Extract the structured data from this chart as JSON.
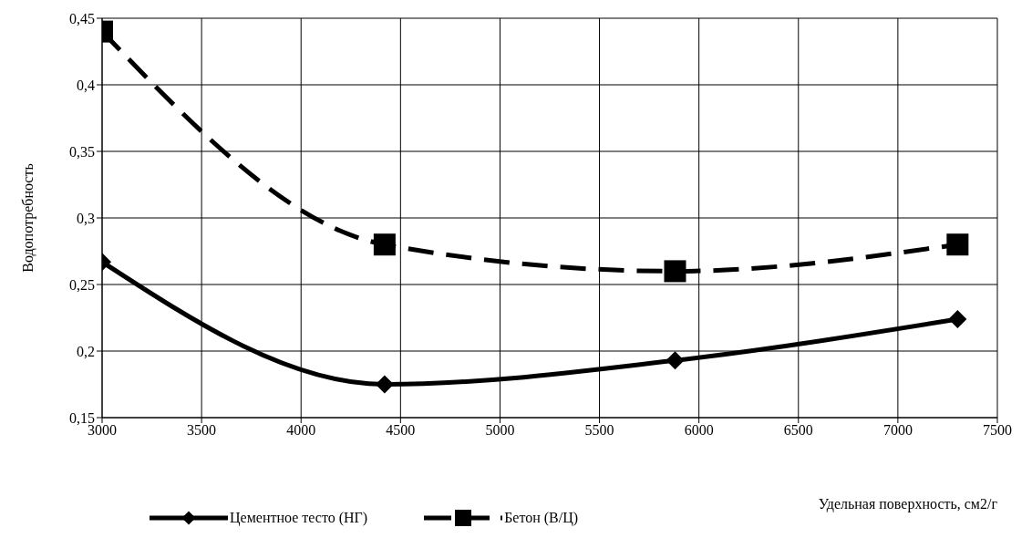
{
  "chart_data": {
    "type": "line",
    "xlabel": "Удельная поверхность, см2/г",
    "ylabel": "Водопотребность",
    "x": [
      3000,
      4420,
      5880,
      7300
    ],
    "series": [
      {
        "name": "Цементное тесто (НГ)",
        "color": "#000000",
        "values": [
          0.267,
          0.175,
          0.193,
          0.224
        ],
        "marker": "diamond",
        "line_style": "solid"
      },
      {
        "name": "Бетон (В/Ц)",
        "color": "#000000",
        "values": [
          0.44,
          0.28,
          0.26,
          0.28
        ],
        "marker": "square",
        "line_style": "dashed"
      }
    ],
    "xlim": [
      3000,
      7500
    ],
    "xticks": [
      3000,
      3500,
      4000,
      4500,
      5000,
      5500,
      6000,
      6500,
      7000,
      7500
    ],
    "ylim": [
      0.15,
      0.45
    ],
    "yticks": [
      {
        "value": 0.15,
        "label": "0,15"
      },
      {
        "value": 0.2,
        "label": "0,2"
      },
      {
        "value": 0.25,
        "label": "0,25"
      },
      {
        "value": 0.3,
        "label": "0,3"
      },
      {
        "value": 0.35,
        "label": "0,35"
      },
      {
        "value": 0.4,
        "label": "0,4"
      },
      {
        "value": 0.45,
        "label": "0,45"
      }
    ],
    "grid": true,
    "legend": "bottom"
  }
}
